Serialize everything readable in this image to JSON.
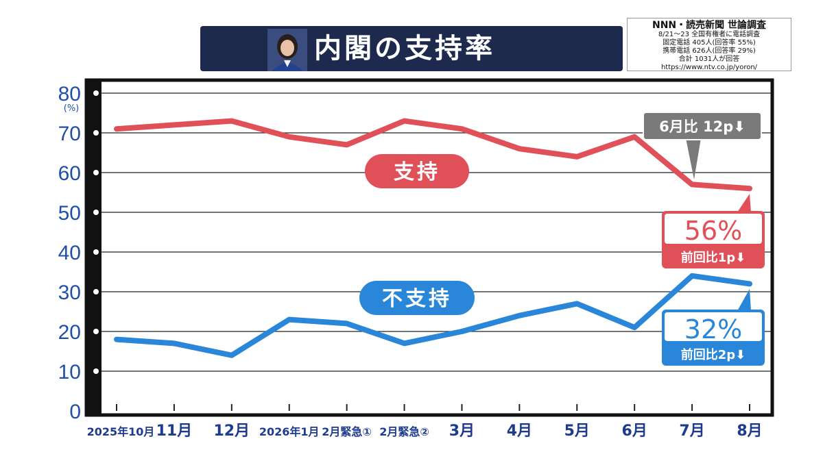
{
  "header": {
    "title": "内閣の支持率"
  },
  "survey_info": {
    "title": "NNN・読売新聞 世論調査",
    "line1": "8/21〜23 全国有権者に電話調査",
    "line2": "固定電話 405人(回答率 55%)",
    "line3": "携帯電話 626人(回答率 29%)",
    "line4": "合計 1031人が回答",
    "line5": "https://www.ntv.co.jp/yoron/"
  },
  "colors": {
    "support": "#e05058",
    "nonsupport": "#2a86d8",
    "frame": "#111111",
    "axis_text": "#1f4fa8",
    "note_gray": "#7a7a7a",
    "title_bg": "#1d2a4e"
  },
  "chart_data": {
    "type": "line",
    "categories": [
      "2025年10月",
      "11月",
      "12月",
      "2026年1月",
      "2月緊急①",
      "2月緊急②",
      "3月",
      "4月",
      "5月",
      "6月",
      "7月",
      "8月"
    ],
    "series": [
      {
        "name": "支持",
        "values": [
          71,
          72,
          73,
          69,
          67,
          73,
          71,
          66,
          64,
          69,
          57,
          56
        ]
      },
      {
        "name": "不支持",
        "values": [
          18,
          17,
          14,
          23,
          22,
          17,
          20,
          24,
          27,
          21,
          34,
          32
        ]
      }
    ],
    "ylim": [
      0,
      80
    ],
    "yticks": [
      "0",
      "10",
      "20",
      "30",
      "40",
      "50",
      "60",
      "70",
      "80"
    ],
    "yunit": "(%)",
    "grid": true,
    "annotations": {
      "support_final": "56%",
      "support_change": "前回比1p⬇",
      "nonsupport_final": "32%",
      "nonsupport_change": "前回比2p⬇",
      "june_compare": "6月比 12p⬇"
    }
  }
}
